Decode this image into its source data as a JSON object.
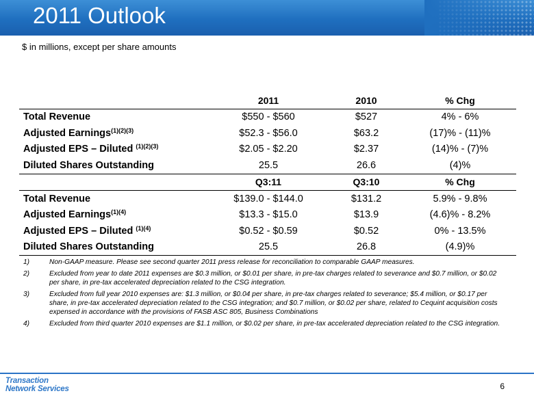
{
  "header": {
    "title": "2011 Outlook"
  },
  "subtitle": "$ in millions, except per share amounts",
  "table": {
    "header_annual": [
      "",
      "2011",
      "2010",
      "% Chg"
    ],
    "annual_rows": [
      {
        "label": "Total Revenue",
        "sup": "",
        "v1": "$550 - $560",
        "v2": "$527",
        "v3": "4% - 6%"
      },
      {
        "label": "Adjusted Earnings",
        "sup": "(1)(2)(3)",
        "v1": "$52.3 - $56.0",
        "v2": "$63.2",
        "v3": "(17)% - (11)%"
      },
      {
        "label": "Adjusted EPS – Diluted ",
        "sup": "(1)(2)(3)",
        "v1": "$2.05 - $2.20",
        "v2": "$2.37",
        "v3": "(14)% - (7)%"
      },
      {
        "label": "Diluted Shares Outstanding",
        "sup": "",
        "v1": "25.5",
        "v2": "26.6",
        "v3": "(4)%"
      }
    ],
    "header_quarter": [
      "",
      "Q3:11",
      "Q3:10",
      "% Chg"
    ],
    "quarter_rows": [
      {
        "label": "Total Revenue",
        "sup": "",
        "v1": "$139.0 - $144.0",
        "v2": "$131.2",
        "v3": "5.9% - 9.8%"
      },
      {
        "label": "Adjusted Earnings",
        "sup": "(1)(4)",
        "v1": "$13.3 - $15.0",
        "v2": "$13.9",
        "v3": "(4.6)% - 8.2%"
      },
      {
        "label": "Adjusted EPS – Diluted ",
        "sup": "(1)(4)",
        "v1": "$0.52 - $0.59",
        "v2": "$0.52",
        "v3": "0% - 13.5%"
      },
      {
        "label": "Diluted Shares Outstanding",
        "sup": "",
        "v1": "25.5",
        "v2": "26.8",
        "v3": "(4.9)%"
      }
    ]
  },
  "notes": [
    {
      "num": "1)",
      "text": "Non-GAAP measure. Please see second quarter 2011 press release for reconciliation to comparable GAAP measures."
    },
    {
      "num": "2)",
      "text": "Excluded from year to date 2011 expenses are $0.3 million, or $0.01 per share, in pre-tax charges related to severance and $0.7 million, or $0.02 per share, in pre-tax accelerated depreciation related to the CSG integration."
    },
    {
      "num": "3)",
      "text": "Excluded from full year 2010 expenses are: $1.3 million, or $0.04 per share, in pre-tax charges related to severance; $5.4 million, or $0.17 per share, in pre-tax accelerated depreciation related to the CSG integration; and $0.7 million, or $0.02 per share, related to Cequint acquisition costs expensed in accordance with the provisions of FASB ASC 805, Business Combinations"
    },
    {
      "num": "4)",
      "text": "Excluded from third quarter 2010 expenses are $1.1 million, or $0.02 per share, in pre-tax accelerated depreciation related to the CSG integration."
    }
  ],
  "footer": {
    "logo_line1": "Transaction",
    "logo_line2": "Network Services",
    "page_number": "6"
  },
  "colors": {
    "title_bar": "#1f6fbf",
    "footer_line": "#2a73c6",
    "logo": "#2f78c8"
  }
}
